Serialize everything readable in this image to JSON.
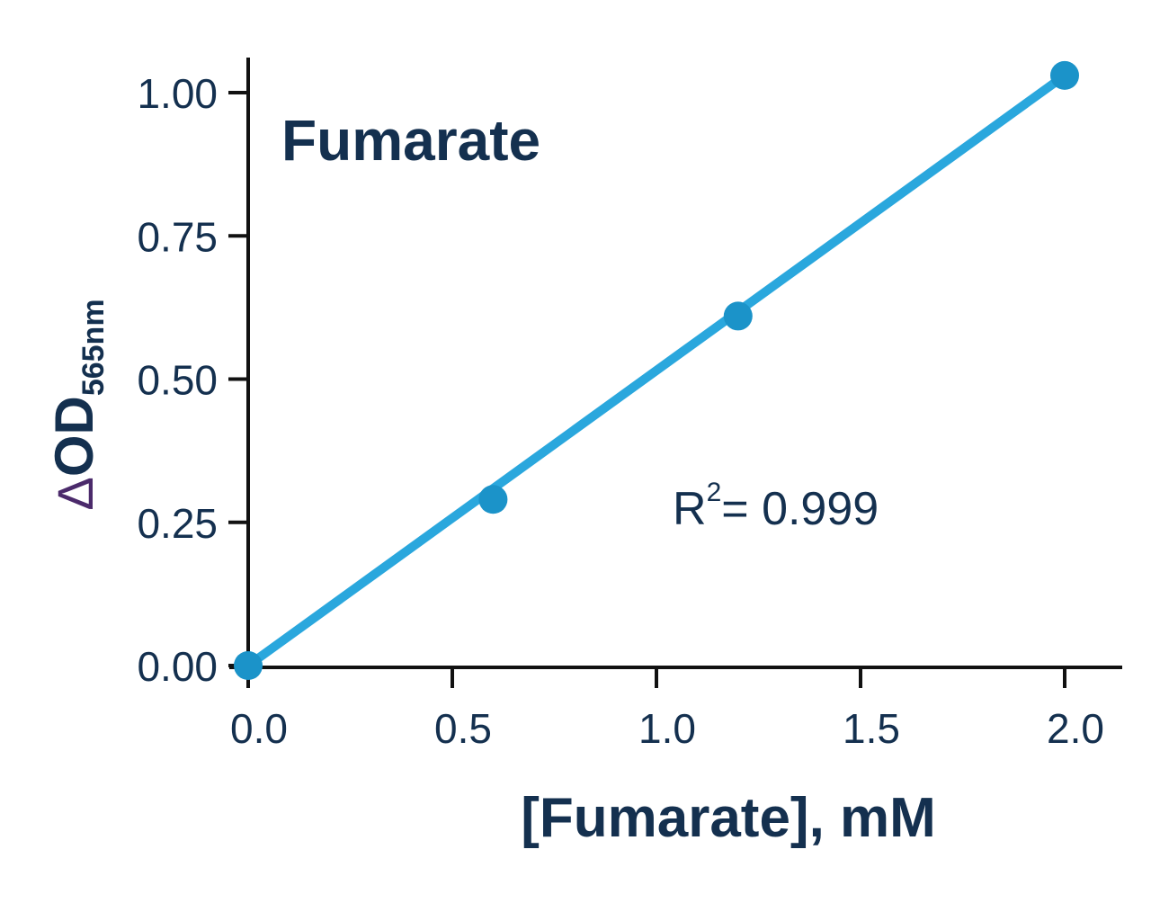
{
  "chart_data": {
    "type": "line",
    "title": "Fumarate",
    "xlabel": "[Fumarate], mM",
    "ylabel": {
      "symbol": "Δ",
      "main": "OD",
      "subscript": "565nm"
    },
    "xlim": [
      0,
      2.0
    ],
    "ylim": [
      0,
      1.0
    ],
    "x_ticks": [
      0,
      0.5,
      1.0,
      1.5,
      2.0
    ],
    "x_tick_labels": [
      "0.0",
      "0.5",
      "1.0",
      "1.5",
      "2.0"
    ],
    "y_ticks": [
      0,
      0.25,
      0.5,
      0.75,
      1.0
    ],
    "y_tick_labels": [
      "0.00",
      "0.25",
      "0.50",
      "0.75",
      "1.00"
    ],
    "grid": false,
    "series": [
      {
        "x": [
          0,
          0.6,
          1.2,
          2.0
        ],
        "y": [
          0.0,
          0.29,
          0.61,
          1.03
        ],
        "fit_line": {
          "x0": 0,
          "y0": 0.0,
          "x1": 2.0,
          "y1": 1.03
        }
      }
    ],
    "annotation": {
      "prefix": "R",
      "superscript": "2",
      "suffix": "= 0.999"
    },
    "colors": {
      "line": "#2aa7dd",
      "point": "#1b93c9",
      "axis": "#111111",
      "text": "#14304f",
      "delta": "#4b2a6b"
    }
  }
}
